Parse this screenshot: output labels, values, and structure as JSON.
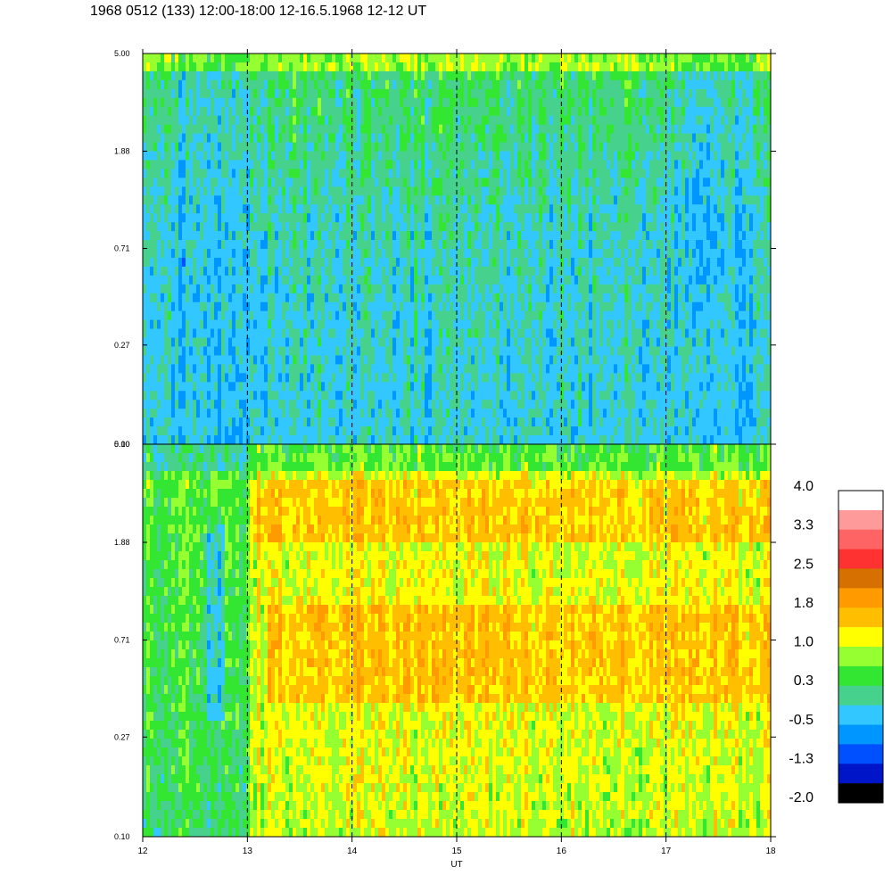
{
  "title": "1968 0512 (133) 12:00-18:00 12-16.5.1968  12-12 UT",
  "chart_data": [
    {
      "type": "heatmap",
      "panel": "top",
      "x_range": [
        12,
        18
      ],
      "x_ticks": [
        "12",
        "13",
        "14",
        "15",
        "16",
        "17",
        "18"
      ],
      "y_scale": "log",
      "y_range": [
        0.1,
        5.0
      ],
      "y_ticks": [
        "0.10",
        "0.27",
        "0.71",
        "1.88",
        "5.00"
      ],
      "dashed_verticals": [
        13,
        14,
        15,
        16,
        17
      ],
      "dominant_levels": [
        "-1.3",
        "-0.5",
        "0.3"
      ]
    },
    {
      "type": "heatmap",
      "panel": "bottom",
      "x_range": [
        12,
        18
      ],
      "x_ticks": [
        "12",
        "13",
        "14",
        "15",
        "16",
        "17",
        "18"
      ],
      "xlabel": "UT",
      "y_scale": "log",
      "y_range": [
        0.1,
        5.0
      ],
      "y_ticks": [
        "0.10",
        "0.27",
        "0.71",
        "1.88",
        "5.00"
      ],
      "dashed_verticals": [
        13,
        14,
        15,
        16,
        17
      ],
      "dominant_levels": [
        "0.3",
        "1.0",
        "1.8"
      ]
    }
  ],
  "colorbar": {
    "labels": [
      "4.0",
      "3.3",
      "2.5",
      "1.8",
      "1.0",
      "0.3",
      "-0.5",
      "-1.3",
      "-2.0"
    ],
    "colors": [
      "#ffffff",
      "#ff9a9a",
      "#ff6464",
      "#ff3232",
      "#d67000",
      "#ff9a00",
      "#ffbe00",
      "#ffff00",
      "#96ff32",
      "#32e632",
      "#46d28c",
      "#32c8ff",
      "#0096ff",
      "#0050ff",
      "#0014c8",
      "#000000"
    ]
  }
}
